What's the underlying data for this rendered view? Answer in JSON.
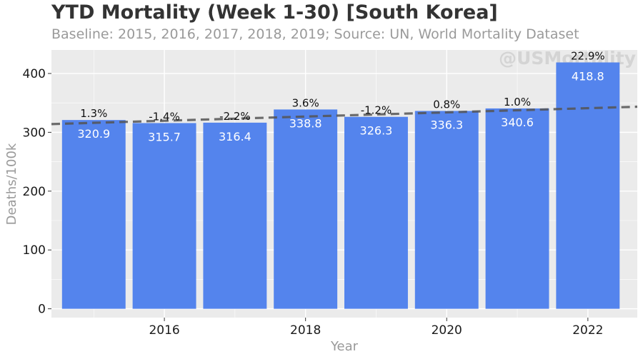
{
  "chart_data": {
    "type": "bar",
    "title": "YTD Mortality (Week 1-30) [South Korea]",
    "subtitle": "Baseline: 2015, 2016, 2017, 2018, 2019; Source: UN, World Mortality Dataset",
    "watermark": "@USMortality",
    "xlabel": "Year",
    "ylabel": "Deaths/100k",
    "x": [
      2015,
      2016,
      2017,
      2018,
      2019,
      2020,
      2021,
      2022
    ],
    "values": [
      320.9,
      315.7,
      316.4,
      338.8,
      326.3,
      336.3,
      340.6,
      418.8
    ],
    "value_labels": [
      "320.9",
      "315.7",
      "316.4",
      "338.8",
      "326.3",
      "336.3",
      "340.6",
      "418.8"
    ],
    "pct_labels": [
      "1.3%",
      "-1.4%",
      "-2.2%",
      "3.6%",
      "-1.2%",
      "0.8%",
      "1.0%",
      "22.9%"
    ],
    "trend_line": {
      "start": {
        "x": 2014.4,
        "y": 314
      },
      "end": {
        "x": 2022.7,
        "y": 343.5
      }
    },
    "x_ticks": [
      2016,
      2018,
      2020,
      2022
    ],
    "y_ticks": [
      0,
      100,
      200,
      300,
      400
    ],
    "xlim": [
      2014.4,
      2022.7
    ],
    "ylim": [
      -15,
      440
    ],
    "grid": true,
    "colors": {
      "bar": "#5484ed",
      "panel": "#ebebeb",
      "grid": "#ffffff",
      "trend": "#555555",
      "title": "#333333",
      "subtitle": "#9a9a9a",
      "watermark": "#d4d4d4"
    }
  }
}
